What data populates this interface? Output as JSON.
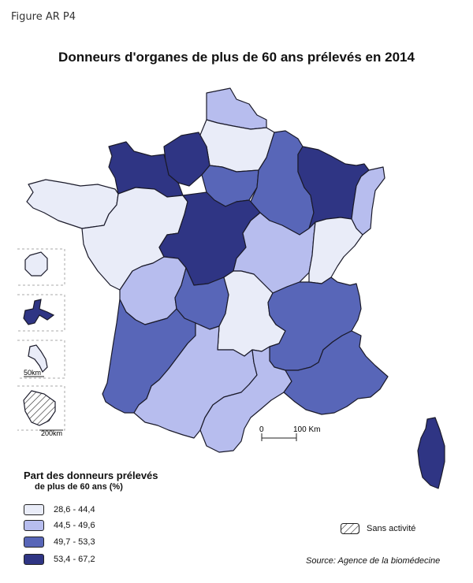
{
  "figure_label": "Figure AR P4",
  "title": "Donneurs d'organes de plus de 60 ans prélevés en 2014",
  "colors": {
    "class1": "#e9ecf8",
    "class2": "#b7bdee",
    "class3": "#5866b8",
    "class4": "#2f3584",
    "stroke": "#1a1a2a"
  },
  "legend": {
    "title": "Part des donneurs prélevés",
    "subtitle": "de plus de 60 ans (%)",
    "classes": [
      {
        "label": "28,6 - 44,4",
        "color": "#e9ecf8"
      },
      {
        "label": "44,5 - 49,6",
        "color": "#b7bdee"
      },
      {
        "label": "49,7 - 53,3",
        "color": "#5866b8"
      },
      {
        "label": "53,4 - 67,2",
        "color": "#2f3584"
      }
    ],
    "no_activity_label": "Sans activité"
  },
  "scale_bar": {
    "start": "0",
    "end": "100 Km"
  },
  "insets": {
    "reunion_scale": "50km",
    "guyane_scale": "200km"
  },
  "source": "Source: Agence de la biomédecine",
  "regions": [
    {
      "name": "Nord-Pas-de-Calais",
      "class": 2
    },
    {
      "name": "Picardie",
      "class": 1
    },
    {
      "name": "Haute-Normandie",
      "class": 4
    },
    {
      "name": "Basse-Normandie",
      "class": 4
    },
    {
      "name": "Île-de-France",
      "class": 3
    },
    {
      "name": "Champagne-Ardenne",
      "class": 3
    },
    {
      "name": "Lorraine",
      "class": 4
    },
    {
      "name": "Alsace",
      "class": 2
    },
    {
      "name": "Bretagne",
      "class": 1
    },
    {
      "name": "Pays de la Loire",
      "class": 1
    },
    {
      "name": "Centre",
      "class": 4
    },
    {
      "name": "Bourgogne",
      "class": 2
    },
    {
      "name": "Franche-Comté",
      "class": 1
    },
    {
      "name": "Poitou-Charentes",
      "class": 2
    },
    {
      "name": "Limousin",
      "class": 3
    },
    {
      "name": "Auvergne",
      "class": 1
    },
    {
      "name": "Rhône-Alpes",
      "class": 3
    },
    {
      "name": "Aquitaine",
      "class": 3
    },
    {
      "name": "Midi-Pyrénées",
      "class": 2
    },
    {
      "name": "Languedoc-Roussillon",
      "class": 2
    },
    {
      "name": "Provence-Alpes-Côte d'Azur",
      "class": 3
    },
    {
      "name": "Corse",
      "class": 4
    },
    {
      "name": "Réunion",
      "class": 1
    },
    {
      "name": "Guadeloupe",
      "class": 4
    },
    {
      "name": "Martinique",
      "class": 1
    },
    {
      "name": "Guyane",
      "class": 0
    }
  ]
}
